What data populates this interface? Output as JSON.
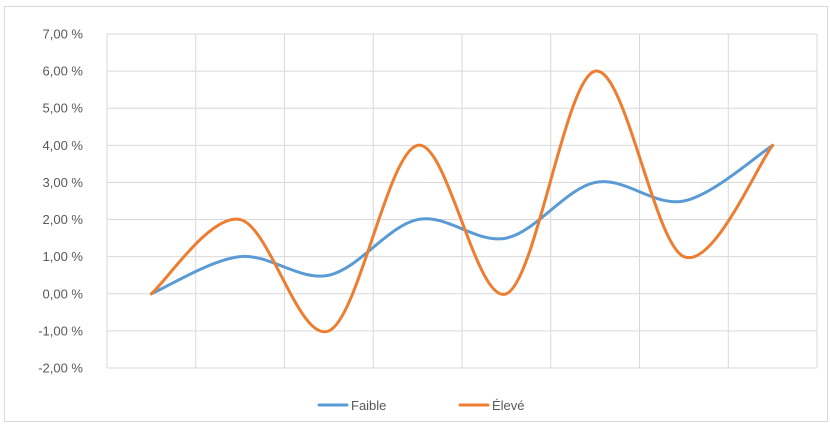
{
  "chart_data": {
    "type": "line",
    "smooth": true,
    "x": [
      1,
      2,
      3,
      4,
      5,
      6,
      7,
      8
    ],
    "xlim": [
      0.5,
      8.5
    ],
    "ylim": [
      -2,
      7
    ],
    "y_ticks": [
      "-2,00 %",
      "-1,00 %",
      "0,00 %",
      "1,00 %",
      "2,00 %",
      "3,00 %",
      "4,00 %",
      "5,00 %",
      "6,00 %",
      "7,00 %"
    ],
    "grid": true,
    "legend_position": "bottom",
    "series": [
      {
        "name": "Faible",
        "color": "#5b9bd5",
        "values": [
          0,
          1,
          0.5,
          2,
          1.5,
          3,
          2.5,
          4
        ]
      },
      {
        "name": "Élevé",
        "color": "#ed7d31",
        "values": [
          0,
          2,
          -1,
          4,
          0,
          6,
          1,
          4
        ]
      }
    ]
  }
}
